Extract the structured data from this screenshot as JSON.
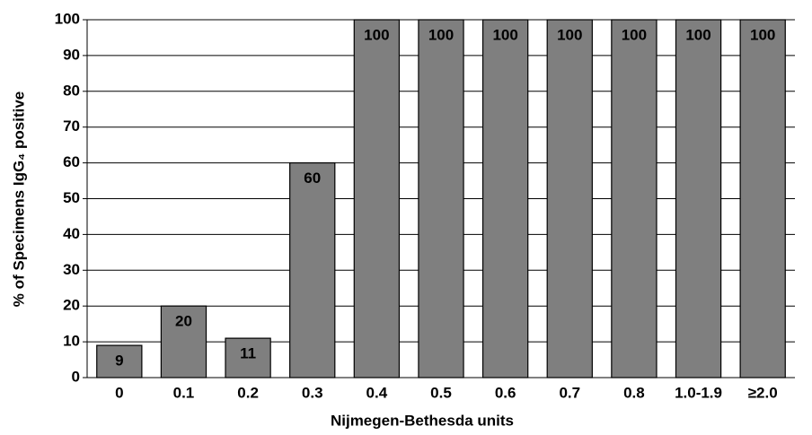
{
  "chart_data": {
    "type": "bar",
    "x_label": "Nijmegen-Bethesda units",
    "y_label": "% of Specimens IgG₄ positive",
    "categories": [
      "0",
      "0.1",
      "0.2",
      "0.3",
      "0.4",
      "0.5",
      "0.6",
      "0.7",
      "0.8",
      "1.0-1.9",
      "≥2.0"
    ],
    "values": [
      9,
      20,
      11,
      60,
      100,
      100,
      100,
      100,
      100,
      100,
      100
    ],
    "color": "#7f7f7f",
    "ylim": [
      0,
      100
    ],
    "yticks": [
      0,
      10,
      20,
      30,
      40,
      50,
      60,
      70,
      80,
      90,
      100
    ],
    "grid": true
  }
}
